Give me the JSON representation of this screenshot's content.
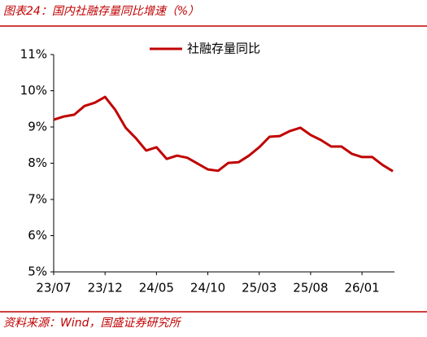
{
  "chart_data": {
    "type": "line",
    "title": "图表24：国内社融存量同比增速（%）",
    "source": "资料来源：Wind，国盛证券研究所",
    "categories": [
      "23/07",
      null,
      null,
      null,
      null,
      "23/12",
      null,
      null,
      null,
      null,
      "24/05",
      null,
      null,
      null,
      null,
      "24/10",
      null,
      null,
      null,
      null,
      "25/03",
      null,
      null,
      null,
      null,
      "25/08",
      null,
      null,
      null,
      null,
      "26/01",
      null,
      null,
      null
    ],
    "series": [
      {
        "name": "社融存量同比",
        "color": "#c00000",
        "values": [
          9.2,
          9.29,
          9.34,
          9.58,
          9.67,
          9.83,
          9.47,
          8.98,
          8.69,
          8.35,
          8.44,
          8.12,
          8.21,
          8.15,
          7.99,
          7.83,
          7.79,
          8.01,
          8.03,
          8.21,
          8.44,
          8.73,
          8.75,
          8.89,
          8.98,
          8.78,
          8.64,
          8.46,
          8.46,
          8.26,
          8.17,
          8.17,
          7.95,
          7.78
        ]
      }
    ],
    "ylim": [
      5,
      11
    ],
    "yticks": [
      {
        "value": 5,
        "label": "5%"
      },
      {
        "value": 6,
        "label": "6%"
      },
      {
        "value": 7,
        "label": "7%"
      },
      {
        "value": 8,
        "label": "8%"
      },
      {
        "value": 9,
        "label": "9%"
      },
      {
        "value": 10,
        "label": "10%"
      },
      {
        "value": 11,
        "label": "11%"
      }
    ],
    "grid": false,
    "legend": "top"
  }
}
